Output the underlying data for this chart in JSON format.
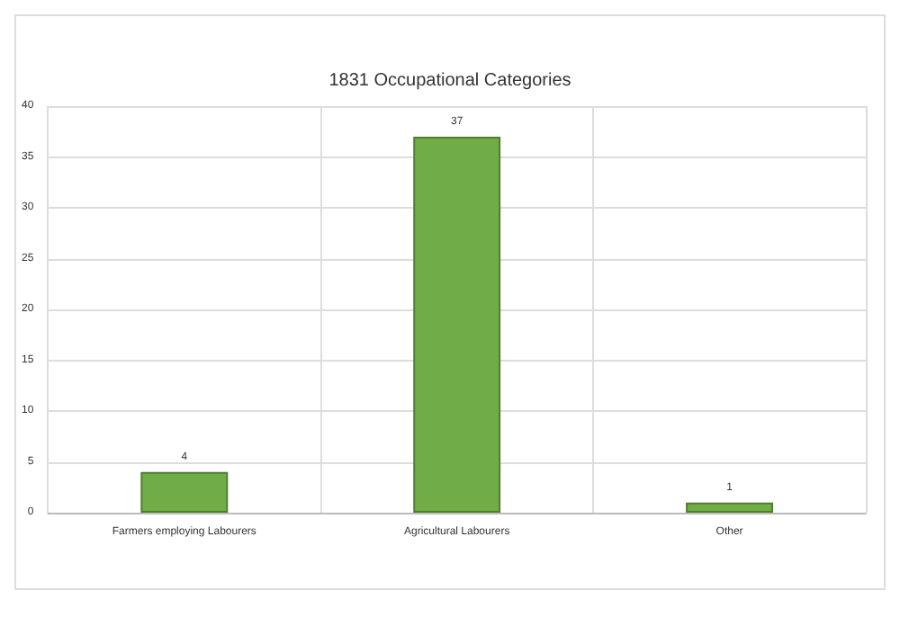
{
  "chart_data": {
    "type": "bar",
    "title": "1831 Occupational Categories",
    "categories": [
      "Farmers employing Labourers",
      "Agricultural Labourers",
      "Other"
    ],
    "values": [
      4,
      37,
      1
    ],
    "color": "#70ad47",
    "ylim": [
      0,
      40
    ],
    "yticks": [
      0,
      5,
      10,
      15,
      20,
      25,
      30,
      35,
      40
    ],
    "grid": true,
    "data_labels": true
  }
}
